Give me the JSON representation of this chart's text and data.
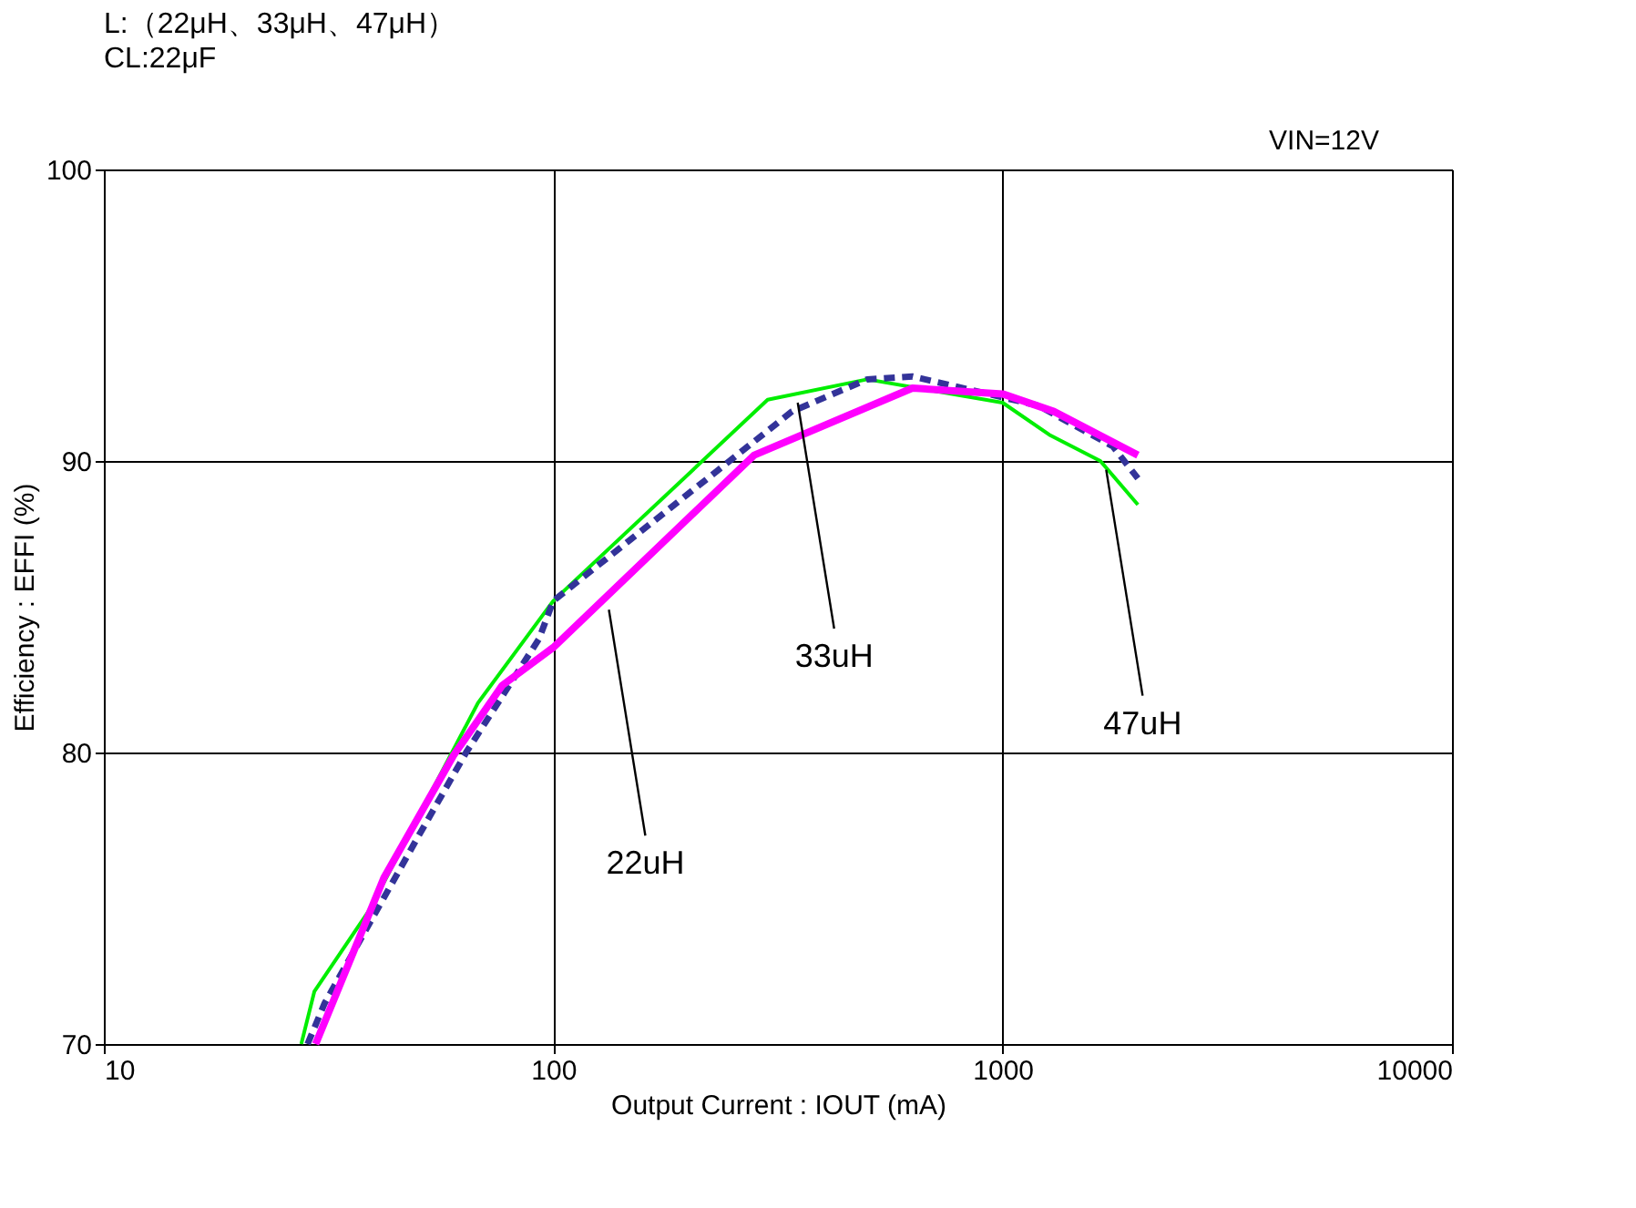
{
  "chart_data": {
    "type": "line",
    "title": "L:（22μH、33μH、47μH）",
    "subtitle": "CL:22μF",
    "xlabel": "Output Current : IOUT (mA)",
    "ylabel": "Efficiency : EFFI (%)",
    "log": "x",
    "xlim": [
      10,
      10000
    ],
    "xticks": [
      10,
      100,
      1000,
      10000
    ],
    "ylim": [
      70,
      100
    ],
    "yticks": [
      70,
      80,
      90,
      100
    ],
    "grid": true,
    "marker": "none",
    "series": [
      {
        "color": "#00ee00",
        "line_style": "solid",
        "x": [
          27.5,
          29.4,
          39,
          68,
          100,
          300,
          500,
          1000,
          1270,
          1650,
          2000
        ],
        "values": [
          70,
          71.8,
          74.6,
          81.7,
          85.2,
          92.1,
          92.8,
          92.0,
          90.9,
          90.0,
          88.5
        ]
      },
      {
        "color": "#333399",
        "line_style": "dashed",
        "x": [
          28.4,
          31,
          50,
          64,
          93,
          100,
          340,
          500,
          630,
          1200,
          1760,
          2000
        ],
        "values": [
          70,
          71.4,
          77.1,
          80.0,
          83.9,
          85.2,
          91.7,
          92.8,
          92.9,
          91.9,
          90.5,
          89.4
        ]
      },
      {
        "color": "#ff00ff",
        "line_style": "solid",
        "x": [
          29.6,
          42,
          60,
          77,
          100,
          280,
          630,
          1000,
          1300,
          2000
        ],
        "values": [
          70,
          75.7,
          79.9,
          82.3,
          83.6,
          90.2,
          92.5,
          92.3,
          91.7,
          90.2
        ]
      }
    ],
    "annotations": [
      {
        "text": "33uH",
        "x": 350,
        "y": 92.0
      },
      {
        "text": "47uH",
        "x": 1700,
        "y": 89.7
      },
      {
        "text": "22uH",
        "x": 133,
        "y": 84.9
      },
      "VIN=12V"
    ]
  }
}
